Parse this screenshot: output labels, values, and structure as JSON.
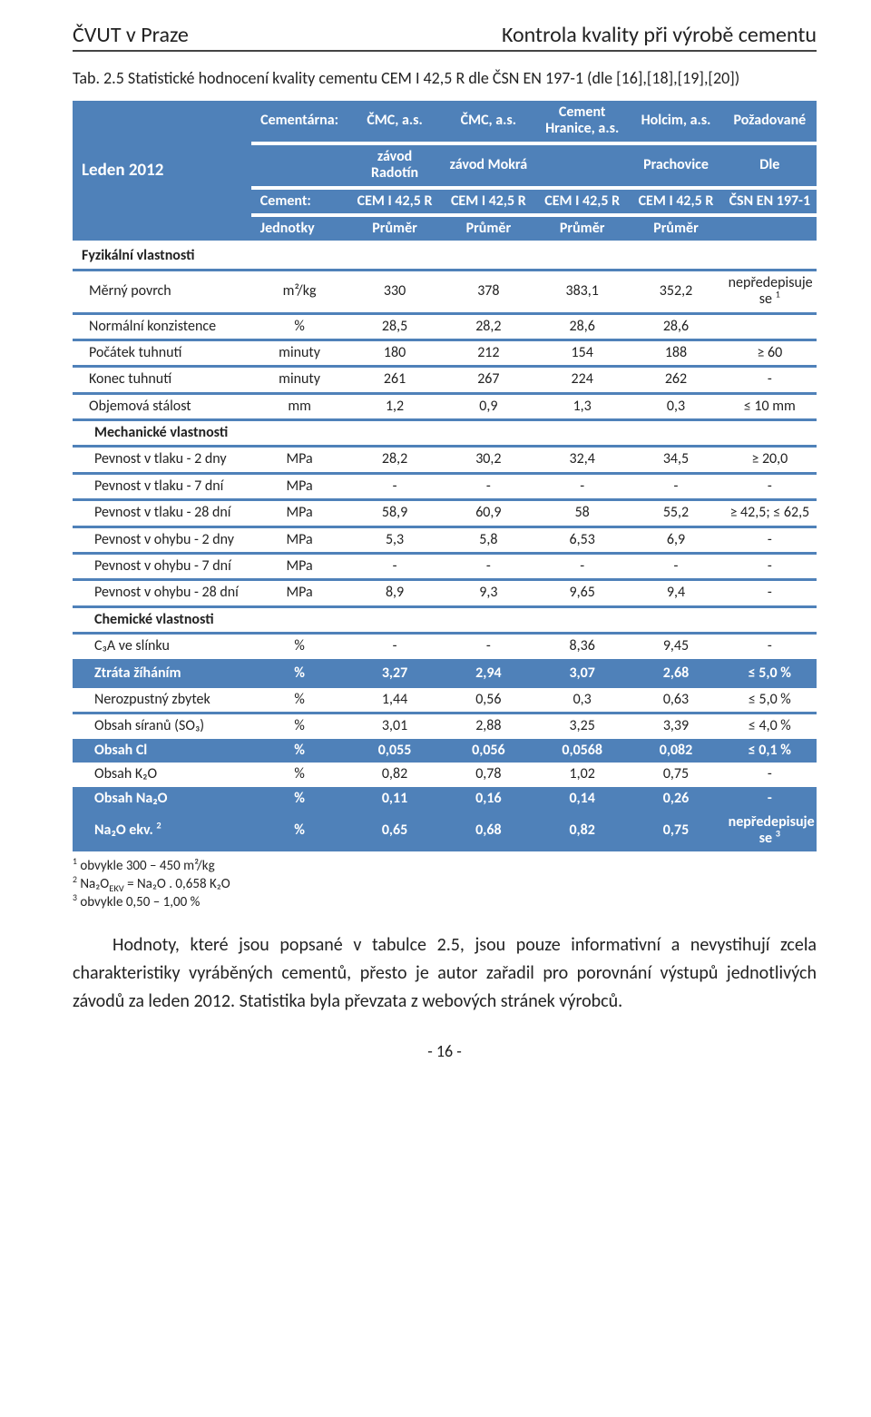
{
  "header": {
    "left": "ČVUT v Praze",
    "right": "Kontrola kvality při výrobě cementu"
  },
  "caption": "Tab. 2.5 Statistické hodnocení kvality cementu CEM I 42,5 R dle ČSN EN 197-1 (dle [16],[18],[19],[20])",
  "thead": {
    "corner": "Leden 2012",
    "r1": [
      "Cementárna:",
      "ČMC, a.s.",
      "ČMC, a.s.",
      "Cement Hranice, a.s.",
      "Holcim, a.s.",
      "Požadované"
    ],
    "r2": [
      "",
      "závod Radotín",
      "závod Mokrá",
      "",
      "Prachovice",
      "Dle"
    ],
    "r3": [
      "Cement:",
      "CEM I 42,5 R",
      "CEM I 42,5 R",
      "CEM I 42,5 R",
      "CEM I 42,5 R",
      "ČSN EN 197-1"
    ],
    "r4": [
      "Jednotky",
      "Průměr",
      "Průměr",
      "Průměr",
      "Průměr",
      ""
    ]
  },
  "sections": [
    {
      "title": "Fyzikální vlastnosti",
      "rows": [
        {
          "label": "Měrný povrch",
          "sup_l": "",
          "unit": "m²/kg",
          "v": [
            "330",
            "378",
            "383,1",
            "352,2"
          ],
          "req": "nepředepisuje se",
          "sup_r": "1"
        },
        {
          "label": "Normální konzistence",
          "unit": "%",
          "v": [
            "28,5",
            "28,2",
            "28,6",
            "28,6"
          ],
          "req": ""
        },
        {
          "label": "Počátek tuhnutí",
          "unit": "minuty",
          "v": [
            "180",
            "212",
            "154",
            "188"
          ],
          "req": "≥ 60"
        },
        {
          "label": "Konec tuhnutí",
          "unit": "minuty",
          "v": [
            "261",
            "267",
            "224",
            "262"
          ],
          "req": "-"
        },
        {
          "label": "Objemová stálost",
          "unit": "mm",
          "v": [
            "1,2",
            "0,9",
            "1,3",
            "0,3"
          ],
          "req": "≤ 10 mm"
        }
      ]
    },
    {
      "title": "Mechanické vlastnosti",
      "rows": [
        {
          "label": "Pevnost v tlaku - 2 dny",
          "unit": "MPa",
          "v": [
            "28,2",
            "30,2",
            "32,4",
            "34,5"
          ],
          "req": "≥ 20,0"
        },
        {
          "label": "Pevnost v tlaku - 7 dní",
          "unit": "MPa",
          "v": [
            "-",
            "-",
            "-",
            "-"
          ],
          "req": "-"
        },
        {
          "label": "Pevnost v tlaku - 28 dní",
          "unit": "MPa",
          "v": [
            "58,9",
            "60,9",
            "58",
            "55,2"
          ],
          "req": "≥ 42,5;  ≤ 62,5"
        },
        {
          "label": "Pevnost v ohybu - 2 dny",
          "unit": "MPa",
          "v": [
            "5,3",
            "5,8",
            "6,53",
            "6,9"
          ],
          "req": "-"
        },
        {
          "label": "Pevnost v ohybu - 7 dní",
          "unit": "MPa",
          "v": [
            "-",
            "-",
            "-",
            "-"
          ],
          "req": "-"
        },
        {
          "label": "Pevnost v ohybu - 28 dní",
          "unit": "MPa",
          "v": [
            "8,9",
            "9,3",
            "9,65",
            "9,4"
          ],
          "req": "-"
        }
      ]
    },
    {
      "title": "Chemické vlastnosti",
      "rows": [
        {
          "label": "C₃A ve slínku",
          "unit": "%",
          "v": [
            "-",
            "-",
            "8,36",
            "9,45"
          ],
          "req": "-"
        },
        {
          "label": "Ztráta žíháním",
          "unit": "%",
          "v": [
            "3,27",
            "2,94",
            "3,07",
            "2,68"
          ],
          "req": "≤ 5,0 %",
          "total": true
        },
        {
          "label": "Nerozpustný zbytek",
          "unit": "%",
          "v": [
            "1,44",
            "0,56",
            "0,3",
            "0,63"
          ],
          "req": "≤ 5,0 %"
        },
        {
          "label": "Obsah síranů (SO₃)",
          "unit": "%",
          "v": [
            "3,01",
            "2,88",
            "3,25",
            "3,39"
          ],
          "req": "≤ 4,0 %"
        },
        {
          "label": "Obsah Cl",
          "unit": "%",
          "v": [
            "0,055",
            "0,056",
            "0,0568",
            "0,082"
          ],
          "req": "≤ 0,1 %",
          "total": true
        },
        {
          "label": "Obsah K₂O",
          "unit": "%",
          "v": [
            "0,82",
            "0,78",
            "1,02",
            "0,75"
          ],
          "req": "-"
        },
        {
          "label": "Obsah Na₂O",
          "unit": "%",
          "v": [
            "0,11",
            "0,16",
            "0,14",
            "0,26"
          ],
          "req": "-",
          "total": true
        },
        {
          "label": "Na₂O ekv.",
          "sup_l": "2",
          "unit": "%",
          "v": [
            "0,65",
            "0,68",
            "0,82",
            "0,75"
          ],
          "req": "nepředepisuje se",
          "sup_r": "3",
          "total": true
        }
      ]
    }
  ],
  "footnotes": [
    {
      "n": "1",
      "t": " obvykle 300 – 450 m²/kg"
    },
    {
      "n": "2",
      "t": " Na₂O<sub>EKV</sub> = Na₂O . 0,658 K₂O"
    },
    {
      "n": "3",
      "t": " obvykle 0,50 – 1,00 %"
    }
  ],
  "paragraph": "Hodnoty, které jsou popsané v tabulce 2.5, jsou pouze informativní a nevystihují zcela charakteristiky vyráběných cementů, přesto je autor zařadil pro porovnání výstupů jednotlivých závodů za leden 2012. Statistika byla převzata z webových stránek výrobců.",
  "pageno": "- 16 -",
  "colors": {
    "accent": "#4f81b9"
  }
}
